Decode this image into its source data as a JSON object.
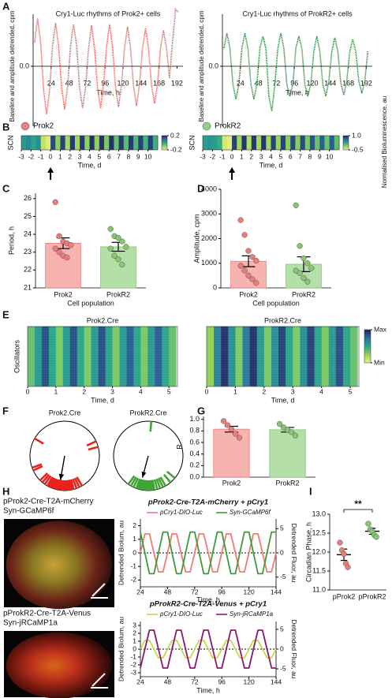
{
  "chart_data": [
    {
      "panel": "A",
      "type": "line",
      "title": "Cry1-Luc rhythms of Prok2+ cells",
      "xlabel": "Time, h",
      "ylabel": "Baseline and amplitude detrended, cpm",
      "color": "#e8635f",
      "x": [
        2,
        6,
        10,
        14,
        18,
        22,
        26,
        30,
        34,
        38,
        42,
        46,
        50,
        54,
        58,
        62,
        66,
        70,
        74,
        78,
        82,
        86,
        90,
        94,
        98,
        102,
        106,
        110,
        114,
        118,
        122,
        126,
        130,
        134,
        138,
        142,
        146,
        150,
        154,
        158,
        162,
        166,
        170,
        174,
        178,
        182,
        186,
        190,
        194
      ],
      "values": [
        0.4,
        0.8,
        0.4,
        -0.4,
        -0.8,
        -0.4,
        0.35,
        0.72,
        0.35,
        -0.35,
        -0.72,
        -0.35,
        0.35,
        0.7,
        0.35,
        -0.35,
        -0.7,
        -0.35,
        0.3,
        0.68,
        0.3,
        -0.35,
        -0.7,
        -0.3,
        0.32,
        0.7,
        0.32,
        -0.35,
        -0.68,
        -0.3,
        0.3,
        0.66,
        0.3,
        -0.33,
        -0.66,
        -0.3,
        0.3,
        0.64,
        0.3,
        -0.32,
        -0.62,
        -0.3,
        0.3,
        0.6,
        0.3,
        -0.2,
        0.4,
        0.95,
        0.9
      ],
      "xlim": [
        0,
        200
      ],
      "xticks": [
        24,
        48,
        72,
        96,
        120,
        144,
        168,
        192
      ],
      "ylim": [
        -1,
        1
      ],
      "yticks": [
        {
          "value": 0,
          "label": "0.0"
        }
      ]
    },
    {
      "type": "line",
      "title": "Cry1-Luc rhythms of ProkR2+ cells",
      "xlabel": "Time, h",
      "ylabel": "Baseline and amplitude detrended, cpm",
      "color": "#2e8b3e",
      "x": [
        2,
        6,
        10,
        14,
        18,
        22,
        26,
        30,
        34,
        38,
        42,
        46,
        50,
        54,
        58,
        62,
        66,
        70,
        74,
        78,
        82,
        86,
        90,
        94,
        98,
        102,
        106,
        110,
        114,
        118,
        122,
        126,
        130,
        134,
        138,
        142,
        146,
        150,
        154,
        158,
        162,
        166,
        170,
        174,
        178,
        182,
        186,
        190,
        194
      ],
      "values": [
        0.3,
        0.55,
        0.3,
        -0.3,
        -0.55,
        -0.3,
        0.3,
        0.55,
        0.3,
        -0.3,
        -0.55,
        -0.3,
        0.3,
        0.5,
        0.3,
        -0.5,
        -0.75,
        -0.3,
        0.3,
        0.55,
        0.3,
        -0.3,
        -0.5,
        -0.3,
        0.3,
        0.5,
        0.3,
        -0.3,
        -0.5,
        -0.3,
        0.25,
        0.5,
        0.25,
        -0.3,
        -0.5,
        -0.25,
        0.25,
        0.48,
        0.25,
        -0.28,
        -0.48,
        -0.25,
        0.25,
        0.45,
        0.25,
        -0.25,
        -0.45,
        -0.25,
        0.25
      ],
      "xlim": [
        0,
        200
      ],
      "xticks": [
        24,
        48,
        72,
        96,
        120,
        144,
        168,
        192
      ],
      "ylim": [
        -1,
        1
      ],
      "yticks": [
        {
          "value": 0,
          "label": "0.0"
        }
      ]
    },
    {
      "panel": "B",
      "type": "heatmap",
      "legend": "Prok2",
      "legend_color": "#f08080",
      "ylabel": "SCN",
      "xlabel": "Time, d",
      "xlim": [
        -3,
        11
      ],
      "xticks": [
        -3,
        -2,
        -1,
        0,
        1,
        2,
        3,
        4,
        5,
        6,
        7,
        8,
        9,
        10
      ],
      "x": [
        -2.75,
        -2.25,
        -1.75,
        -1.25,
        -0.75,
        -0.25,
        0.25,
        0.75,
        1.25,
        1.75,
        2.25,
        2.75,
        3.25,
        3.75,
        4.25,
        4.75,
        5.25,
        5.75,
        6.25,
        6.75,
        7.25,
        7.75,
        8.25,
        8.75,
        9.25,
        9.75,
        10.25,
        10.75
      ],
      "values": [
        0.02,
        0.05,
        0,
        0.04,
        -0.15,
        -0.18,
        0.15,
        -0.1,
        0.16,
        -0.12,
        0.17,
        -0.12,
        0.17,
        -0.1,
        0.18,
        -0.1,
        0.18,
        -0.08,
        0.18,
        -0.06,
        0.17,
        -0.05,
        0.17,
        -0.04,
        0.16,
        -0.03,
        0.16,
        -0.02
      ],
      "colors": [
        "#f2f27a",
        "#8fd25a",
        "#2aa58a",
        "#2b6ea3",
        "#24235e"
      ],
      "cticks": [
        -0.2,
        0.2
      ]
    },
    {
      "type": "heatmap",
      "legend": "ProkR2",
      "legend_color": "#8fd18a",
      "ylabel": "SCN",
      "xlabel": "Time, d",
      "side_label": "Normalised Bioluminescence, au",
      "xlim": [
        -3,
        11
      ],
      "xticks": [
        -3,
        -2,
        -1,
        0,
        1,
        2,
        3,
        4,
        5,
        6,
        7,
        8,
        9,
        10
      ],
      "x": [
        -2.75,
        -2.25,
        -1.75,
        -1.25,
        -0.75,
        -0.25,
        0.25,
        0.75,
        1.25,
        1.75,
        2.25,
        2.75,
        3.25,
        3.75,
        4.25,
        4.75,
        5.25,
        5.75,
        6.25,
        6.75,
        7.25,
        7.75,
        8.25,
        8.75,
        9.25,
        9.75,
        10.25,
        10.75
      ],
      "values": [
        0.3,
        0.35,
        0.3,
        0.2,
        -0.4,
        -0.45,
        0.85,
        -0.2,
        0.9,
        -0.25,
        0.9,
        -0.2,
        0.9,
        -0.2,
        0.85,
        -0.15,
        0.85,
        -0.1,
        0.8,
        -0.1,
        0.8,
        -0.05,
        0.75,
        0,
        0.7,
        0,
        0.7,
        0.05
      ],
      "colors": [
        "#f2f27a",
        "#8fd25a",
        "#2aa58a",
        "#2b6ea3",
        "#24235e"
      ],
      "cticks": [
        -0.5,
        {
          "value": 1,
          "label": "1.0"
        }
      ]
    },
    {
      "panel": "C",
      "type": "bar",
      "categories": [
        "Prok2",
        "ProkR2"
      ],
      "values": [
        23.5,
        23.3
      ],
      "errors": [
        0.3,
        0.25
      ],
      "points": [
        [
          25.8,
          23.9,
          23.6,
          23.5,
          23.4,
          23.2,
          23.0,
          22.8,
          22.7
        ],
        [
          24.3,
          23.9,
          23.8,
          23.6,
          23.3,
          23.2,
          22.8,
          22.6,
          22.3
        ]
      ],
      "colors": [
        "#f6b3b0",
        "#b5dfa8"
      ],
      "point_colors": [
        "#ec7c7a",
        "#86c76f"
      ],
      "ylim": [
        21,
        26.3
      ],
      "yticks": [
        21,
        22,
        23,
        24,
        25,
        26
      ],
      "ylabel": "Period, h",
      "xlabel": "Cell population"
    },
    {
      "panel": "D",
      "type": "bar",
      "categories": [
        "Prok2",
        "ProkR2"
      ],
      "values": [
        1080,
        960
      ],
      "errors": [
        220,
        300
      ],
      "points": [
        [
          2750,
          2150,
          1500,
          1250,
          1100,
          900,
          700,
          500,
          350,
          200
        ],
        [
          3350,
          1700,
          1200,
          1000,
          800,
          700,
          600,
          400,
          250
        ]
      ],
      "colors": [
        "#f6b3b0",
        "#b5dfa8"
      ],
      "point_colors": [
        "#ec7c7a",
        "#86c76f"
      ],
      "ylim": [
        0,
        4000
      ],
      "yticks": [
        0,
        1000,
        2000,
        3000,
        4000
      ],
      "ylabel": "Amplitude, cpm",
      "xlabel": "Cell population"
    },
    {
      "panel": "E",
      "type": "heatmap",
      "title": "Prok2.Cre",
      "ylabel": "Oscillators",
      "xlabel": "Time, d",
      "xlim": [
        0,
        5.3
      ],
      "xticks": [
        0,
        1,
        2,
        3,
        4,
        5
      ],
      "x": [
        0.125,
        0.375,
        0.625,
        0.875,
        1.125,
        1.375,
        1.625,
        1.875,
        2.125,
        2.375,
        2.625,
        2.875,
        3.125,
        3.375,
        3.625,
        3.875,
        4.125,
        4.375,
        4.625,
        4.875,
        5.125
      ],
      "values": [
        0.35,
        0.55,
        0.85,
        0.5,
        0.3,
        0.55,
        0.85,
        0.5,
        0.3,
        0.55,
        0.85,
        0.5,
        0.3,
        0.55,
        0.8,
        0.5,
        0.3,
        0.55,
        0.8,
        0.5,
        0.35
      ],
      "colors": [
        "#f2f27a",
        "#8fd25a",
        "#2aa58a",
        "#2b6ea3",
        "#24235e"
      ]
    },
    {
      "type": "heatmap",
      "title": "ProkR2.Cre",
      "xlabel": "Time, d",
      "xlim": [
        0,
        5.3
      ],
      "xticks": [
        0,
        1,
        2,
        3,
        4,
        5
      ],
      "x": [
        0.125,
        0.375,
        0.625,
        0.875,
        1.125,
        1.375,
        1.625,
        1.875,
        2.125,
        2.375,
        2.625,
        2.875,
        3.125,
        3.375,
        3.625,
        3.875,
        4.125,
        4.375,
        4.625,
        4.875,
        5.125
      ],
      "values": [
        0.25,
        0.65,
        0.95,
        0.6,
        0.3,
        0.7,
        0.95,
        0.55,
        0.3,
        0.6,
        0.9,
        0.5,
        0.3,
        0.6,
        0.9,
        0.5,
        0.3,
        0.55,
        0.85,
        0.5,
        0.35
      ],
      "colors": [
        "#f2f27a",
        "#8fd25a",
        "#2aa58a",
        "#2b6ea3",
        "#24235e"
      ],
      "cticks": [
        {
          "value": 0,
          "label": "Min"
        },
        {
          "value": 1,
          "label": "Max"
        }
      ]
    },
    {
      "panel": "F",
      "type": "polar",
      "title": "Prok2.Cre",
      "color": "#e8231c",
      "phases": [
        300,
        250,
        245,
        65,
        75,
        150,
        155,
        160,
        165,
        168,
        170,
        172,
        175,
        178,
        180,
        180,
        182,
        185,
        185,
        188,
        190,
        190,
        192,
        195,
        198,
        200,
        202,
        205,
        208,
        210,
        215,
        220,
        225
      ],
      "vector": {
        "angle": 190,
        "length": 0.7
      }
    },
    {
      "type": "polar",
      "title": "ProkR2.Cre",
      "color": "#3fa535",
      "phases": [
        5,
        130,
        140,
        150,
        155,
        160,
        165,
        170,
        172,
        175,
        178,
        180,
        182,
        185,
        188,
        190,
        192,
        195,
        198,
        200,
        205,
        210,
        215
      ],
      "vector": {
        "angle": 195,
        "length": 0.65
      }
    },
    {
      "panel": "G",
      "type": "bar",
      "categories": [
        "Prok2",
        "ProkR2"
      ],
      "values": [
        0.83,
        0.82
      ],
      "errors": [
        0.05,
        0.04
      ],
      "points": [
        [
          0.97,
          0.9,
          0.83,
          0.75,
          0.68
        ],
        [
          0.92,
          0.86,
          0.82,
          0.78,
          0.72
        ]
      ],
      "colors": [
        "#f6b3b0",
        "#b5dfa8"
      ],
      "point_colors": [
        "#ec7c7a",
        "#86c76f"
      ],
      "ylim": [
        0,
        1.05
      ],
      "yticks": [
        {
          "value": 0,
          "label": "0.0"
        },
        0.2,
        0.4,
        0.6,
        0.8,
        {
          "value": 1,
          "label": "1.0"
        }
      ],
      "ylabel": "R"
    },
    {
      "panel": "H",
      "type": "dual_line",
      "title": "pProk2-Cre-T2A-mCherry + pCry1",
      "image_labels": [
        {
          "text": "pProk2-Cre-T2A-mCherry",
          "color": "#e8231c"
        },
        {
          "text": "Syn-GCaMP6f",
          "color": "#3fa535"
        }
      ],
      "ylabel": "Detrended Biolum, au",
      "y2label": "Detrended Fluor, au",
      "xlabel": "Time, h",
      "x": [
        24,
        28,
        32,
        36,
        40,
        44,
        48,
        52,
        56,
        60,
        64,
        68,
        72,
        76,
        80,
        84,
        88,
        92,
        96,
        100,
        104,
        108,
        112,
        116,
        120,
        124,
        128,
        132,
        136,
        140,
        144
      ],
      "xlim": [
        24,
        144
      ],
      "xticks": [
        24,
        48,
        72,
        96,
        120,
        144
      ],
      "ylim": [
        -2.5,
        2.5
      ],
      "yticks": [
        -2,
        -1,
        0,
        1,
        2
      ],
      "y2lim": [
        -7,
        7
      ],
      "y2ticks": [
        -5,
        0,
        5
      ],
      "series": [
        {
          "name": "pCry1-DIO-Luc",
          "color": "#f07a74",
          "values": [
            0,
            1.4,
            1.4,
            0,
            -1.4,
            -1.4,
            0,
            1.4,
            1.4,
            0,
            -1.4,
            -1.4,
            0,
            1.4,
            1.4,
            0,
            -1.4,
            -1.4,
            0,
            1.4,
            1.4,
            0,
            -1.4,
            -1.4,
            0,
            1.4,
            1.4,
            0,
            -1.4,
            -1.4,
            0
          ]
        },
        {
          "name": "Syn-GCaMP6f",
          "color": "#3f9a3a",
          "axis": "y2",
          "values": [
            4.3,
            0,
            -4.3,
            -4.3,
            0,
            4.3,
            4.3,
            0,
            -4.3,
            -4.3,
            0,
            4.3,
            4.3,
            0,
            -4.3,
            -4.3,
            0,
            4.3,
            4.3,
            0,
            -4.3,
            -4.3,
            0,
            4.3,
            4.3,
            0,
            -4.3,
            -4.3,
            0,
            4.3,
            4.3
          ]
        }
      ]
    },
    {
      "type": "dual_line",
      "title": "pProkR2-Cre-T2A-Venus + pCry1",
      "image_labels": [
        {
          "text": "pProkR2-Cre-T2A-Venus",
          "color": "#3fa535"
        },
        {
          "text": "Syn-jRCaMP1a",
          "color": "#e8231c"
        }
      ],
      "ylabel": "Detrended Biolum, au",
      "y2label": "Detrended Fluor, au",
      "xlabel": "Time, h",
      "x": [
        24,
        28,
        32,
        36,
        40,
        44,
        48,
        52,
        56,
        60,
        64,
        68,
        72,
        76,
        80,
        84,
        88,
        92,
        96,
        100,
        104,
        108,
        112,
        116,
        120,
        124,
        128,
        132,
        136,
        140,
        144
      ],
      "xlim": [
        24,
        144
      ],
      "xticks": [
        24,
        48,
        72,
        96,
        120,
        144
      ],
      "ylim": [
        -3.5,
        3.5
      ],
      "yticks": [
        -3,
        -2,
        -1,
        0,
        1,
        2,
        3
      ],
      "y2lim": [
        -7,
        7
      ],
      "y2ticks": [
        -5,
        0,
        5
      ],
      "series": [
        {
          "name": "pCry1-DIO-Luc",
          "color": "#c9d64a",
          "values": [
            0,
            1.1,
            1.1,
            0,
            -1.1,
            -1.1,
            0,
            1.1,
            1.1,
            0,
            -1.1,
            -1.1,
            0,
            1.1,
            1.1,
            0,
            -1.1,
            -1.1,
            0,
            1.1,
            1.1,
            0,
            -1.1,
            -1.1,
            0,
            1.1,
            1.1,
            0,
            -1.1,
            -1.1,
            0
          ]
        },
        {
          "name": "Syn-jRCaMP1a",
          "color": "#8b1a6b",
          "axis": "y2",
          "values": [
            -4.8,
            0,
            4.8,
            4.8,
            0,
            -4.8,
            -4.8,
            0,
            4.8,
            4.8,
            0,
            -4.8,
            -4.8,
            0,
            4.8,
            4.8,
            0,
            -4.8,
            -4.8,
            0,
            4.8,
            4.8,
            0,
            -4.8,
            -4.8,
            0,
            4.8,
            4.8,
            0,
            -4.8,
            -4.8
          ]
        }
      ]
    },
    {
      "panel": "I",
      "type": "dot",
      "categories": [
        "pProk2",
        "pProkR2"
      ],
      "values": [
        11.93,
        12.55
      ],
      "errors": [
        0.15,
        0.08
      ],
      "points": [
        [
          12.25,
          12.05,
          11.95,
          11.7,
          11.6
        ],
        [
          12.75,
          12.6,
          12.55,
          12.45,
          12.4
        ]
      ],
      "point_colors": [
        "#ec7c7a",
        "#86c76f"
      ],
      "ylim": [
        11,
        13
      ],
      "yticks": [
        {
          "value": 11,
          "label": "11.0"
        },
        11.5,
        {
          "value": 12,
          "label": "12.0"
        },
        12.5,
        {
          "value": 13,
          "label": "13.0"
        }
      ],
      "ylabel": "Circadian Phase, h",
      "annotation": "**"
    }
  ]
}
